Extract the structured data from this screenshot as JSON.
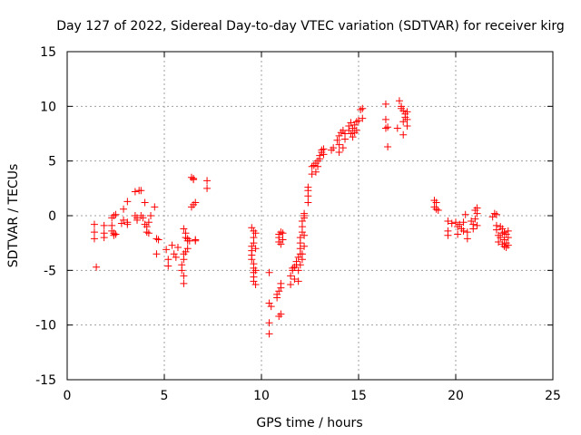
{
  "chart_data": {
    "type": "scatter",
    "title": "Day 127 of 2022, Sidereal Day-to-day VTEC variation (SDTVAR) for receiver kirg",
    "xlabel": "GPS time / hours",
    "ylabel": "SDTVAR / TECUs",
    "xlim": [
      0,
      25
    ],
    "ylim": [
      -15,
      15
    ],
    "xticks": [
      0,
      5,
      10,
      15,
      20,
      25
    ],
    "yticks": [
      -15,
      -10,
      -5,
      0,
      5,
      10,
      15
    ],
    "grid": true,
    "marker": "+",
    "color": "#ff0000",
    "series": [
      {
        "name": "SDTVAR",
        "points": [
          [
            1.4,
            -0.8
          ],
          [
            1.4,
            -1.5
          ],
          [
            1.4,
            -2.1
          ],
          [
            1.5,
            -4.7
          ],
          [
            1.9,
            -0.9
          ],
          [
            1.9,
            -1.6
          ],
          [
            1.9,
            -2.0
          ],
          [
            2.3,
            -0.2
          ],
          [
            2.3,
            -0.9
          ],
          [
            2.3,
            -1.4
          ],
          [
            2.4,
            0.0
          ],
          [
            2.4,
            -1.6
          ],
          [
            2.4,
            -1.8
          ],
          [
            2.5,
            0.1
          ],
          [
            2.5,
            -1.7
          ],
          [
            2.8,
            -0.7
          ],
          [
            2.9,
            -0.4
          ],
          [
            2.9,
            0.6
          ],
          [
            3.1,
            1.3
          ],
          [
            3.1,
            -0.6
          ],
          [
            3.1,
            -0.8
          ],
          [
            3.5,
            0.0
          ],
          [
            3.5,
            2.2
          ],
          [
            3.6,
            -0.2
          ],
          [
            3.6,
            -0.4
          ],
          [
            3.7,
            2.3
          ],
          [
            3.8,
            2.3
          ],
          [
            3.8,
            0.0
          ],
          [
            3.9,
            -0.2
          ],
          [
            4.0,
            1.2
          ],
          [
            4.0,
            -0.8
          ],
          [
            4.1,
            -1.0
          ],
          [
            4.1,
            -1.5
          ],
          [
            4.2,
            -1.6
          ],
          [
            4.2,
            -0.6
          ],
          [
            4.3,
            0.0
          ],
          [
            4.5,
            0.8
          ],
          [
            4.6,
            -2.1
          ],
          [
            4.6,
            -3.5
          ],
          [
            4.7,
            -2.2
          ],
          [
            5.1,
            -3.1
          ],
          [
            5.2,
            -4.0
          ],
          [
            5.2,
            -4.6
          ],
          [
            5.4,
            -2.7
          ],
          [
            5.5,
            -3.5
          ],
          [
            5.6,
            -3.8
          ],
          [
            5.7,
            -2.9
          ],
          [
            5.9,
            -4.5
          ],
          [
            5.9,
            -5.0
          ],
          [
            6.0,
            -5.5
          ],
          [
            6.0,
            -6.2
          ],
          [
            6.0,
            -4.0
          ],
          [
            6.0,
            -3.5
          ],
          [
            6.0,
            -1.2
          ],
          [
            6.1,
            -1.6
          ],
          [
            6.1,
            -2.0
          ],
          [
            6.1,
            -3.3
          ],
          [
            6.2,
            -2.1
          ],
          [
            6.2,
            -2.3
          ],
          [
            6.2,
            -3.0
          ],
          [
            6.3,
            -2.3
          ],
          [
            6.4,
            0.8
          ],
          [
            6.4,
            3.5
          ],
          [
            6.5,
            1.0
          ],
          [
            6.5,
            3.3
          ],
          [
            6.5,
            3.4
          ],
          [
            6.6,
            1.2
          ],
          [
            6.6,
            -2.3
          ],
          [
            6.6,
            -2.2
          ],
          [
            7.2,
            3.2
          ],
          [
            7.2,
            2.5
          ],
          [
            9.5,
            -1.1
          ],
          [
            9.5,
            -2.8
          ],
          [
            9.5,
            -3.2
          ],
          [
            9.5,
            -3.6
          ],
          [
            9.5,
            -4.0
          ],
          [
            9.6,
            -4.4
          ],
          [
            9.6,
            -4.8
          ],
          [
            9.6,
            -5.2
          ],
          [
            9.6,
            -5.6
          ],
          [
            9.6,
            -6.0
          ],
          [
            9.6,
            -1.4
          ],
          [
            9.7,
            -1.6
          ],
          [
            9.7,
            -3.0
          ],
          [
            9.7,
            -5.0
          ],
          [
            9.7,
            -6.3
          ],
          [
            9.6,
            -2.0
          ],
          [
            9.6,
            -2.5
          ],
          [
            10.4,
            -5.2
          ],
          [
            10.4,
            -8.0
          ],
          [
            10.4,
            -9.8
          ],
          [
            10.4,
            -10.8
          ],
          [
            10.5,
            -8.3
          ],
          [
            10.8,
            -7.2
          ],
          [
            10.8,
            -7.5
          ],
          [
            10.9,
            -6.9
          ],
          [
            10.9,
            -9.2
          ],
          [
            11.0,
            -6.6
          ],
          [
            11.0,
            -9.0
          ],
          [
            11.0,
            -6.2
          ],
          [
            10.9,
            -1.7
          ],
          [
            10.9,
            -2.0
          ],
          [
            10.9,
            -2.4
          ],
          [
            11.0,
            -2.6
          ],
          [
            11.0,
            -1.5
          ],
          [
            11.1,
            -1.6
          ],
          [
            11.1,
            -2.2
          ],
          [
            11.5,
            -5.5
          ],
          [
            11.5,
            -6.3
          ],
          [
            11.6,
            -5.0
          ],
          [
            11.6,
            -4.8
          ],
          [
            11.7,
            -4.7
          ],
          [
            11.7,
            -5.8
          ],
          [
            11.8,
            -4.5
          ],
          [
            11.8,
            -4.2
          ],
          [
            11.9,
            -3.8
          ],
          [
            11.9,
            -5.0
          ],
          [
            11.9,
            -6.0
          ],
          [
            12.0,
            -3.5
          ],
          [
            12.0,
            -3.0
          ],
          [
            12.0,
            -2.5
          ],
          [
            12.0,
            -2.0
          ],
          [
            12.0,
            -4.5
          ],
          [
            12.1,
            -1.5
          ],
          [
            12.1,
            -1.0
          ],
          [
            12.1,
            -0.5
          ],
          [
            12.1,
            -3.5
          ],
          [
            12.1,
            -4.0
          ],
          [
            12.2,
            0.0
          ],
          [
            12.2,
            -1.8
          ],
          [
            12.2,
            -2.8
          ],
          [
            12.2,
            -0.2
          ],
          [
            12.2,
            0.2
          ],
          [
            12.4,
            1.2
          ],
          [
            12.4,
            1.8
          ],
          [
            12.4,
            2.3
          ],
          [
            12.4,
            2.6
          ],
          [
            12.6,
            3.8
          ],
          [
            12.6,
            4.5
          ],
          [
            12.7,
            4.6
          ],
          [
            12.8,
            4.0
          ],
          [
            12.8,
            4.8
          ],
          [
            12.9,
            5.0
          ],
          [
            12.9,
            4.5
          ],
          [
            13.0,
            5.5
          ],
          [
            13.0,
            5.2
          ],
          [
            13.1,
            5.8
          ],
          [
            13.1,
            6.0
          ],
          [
            13.2,
            6.1
          ],
          [
            13.2,
            5.6
          ],
          [
            13.6,
            6.0
          ],
          [
            13.7,
            6.2
          ],
          [
            13.9,
            6.9
          ],
          [
            14.0,
            7.3
          ],
          [
            14.0,
            6.5
          ],
          [
            14.0,
            5.8
          ],
          [
            14.1,
            7.6
          ],
          [
            14.2,
            7.8
          ],
          [
            14.2,
            6.2
          ],
          [
            14.3,
            7.5
          ],
          [
            14.3,
            7.0
          ],
          [
            14.5,
            7.8
          ],
          [
            14.5,
            8.2
          ],
          [
            14.6,
            7.5
          ],
          [
            14.6,
            8.5
          ],
          [
            14.7,
            8.0
          ],
          [
            14.7,
            7.2
          ],
          [
            14.8,
            8.3
          ],
          [
            14.8,
            7.6
          ],
          [
            14.9,
            8.6
          ],
          [
            14.9,
            7.8
          ],
          [
            15.0,
            8.7
          ],
          [
            15.1,
            9.7
          ],
          [
            15.2,
            9.8
          ],
          [
            15.2,
            8.9
          ],
          [
            16.4,
            10.2
          ],
          [
            16.4,
            8.8
          ],
          [
            16.4,
            8.0
          ],
          [
            16.5,
            6.3
          ],
          [
            16.5,
            8.1
          ],
          [
            17.0,
            8.0
          ],
          [
            17.1,
            10.5
          ],
          [
            17.2,
            10.0
          ],
          [
            17.2,
            9.8
          ],
          [
            17.3,
            9.6
          ],
          [
            17.3,
            8.6
          ],
          [
            17.3,
            7.4
          ],
          [
            17.4,
            9.0
          ],
          [
            17.4,
            9.3
          ],
          [
            17.5,
            9.5
          ],
          [
            17.5,
            8.8
          ],
          [
            17.5,
            8.2
          ],
          [
            18.9,
            1.4
          ],
          [
            18.9,
            0.8
          ],
          [
            19.0,
            0.6
          ],
          [
            19.0,
            1.2
          ],
          [
            19.1,
            0.5
          ],
          [
            19.6,
            -0.5
          ],
          [
            19.6,
            -1.4
          ],
          [
            19.6,
            -1.8
          ],
          [
            19.8,
            -0.7
          ],
          [
            20.0,
            -0.6
          ],
          [
            20.1,
            -1.0
          ],
          [
            20.1,
            -1.7
          ],
          [
            20.2,
            -0.8
          ],
          [
            20.3,
            -1.2
          ],
          [
            20.4,
            -0.6
          ],
          [
            20.4,
            -1.4
          ],
          [
            20.5,
            0.1
          ],
          [
            20.6,
            -2.1
          ],
          [
            20.6,
            -1.5
          ],
          [
            20.8,
            -0.5
          ],
          [
            20.9,
            -0.8
          ],
          [
            20.9,
            -1.2
          ],
          [
            21.0,
            0.5
          ],
          [
            21.0,
            -0.3
          ],
          [
            21.1,
            0.7
          ],
          [
            21.1,
            0.2
          ],
          [
            21.1,
            -0.9
          ],
          [
            21.9,
            -0.1
          ],
          [
            22.0,
            0.2
          ],
          [
            22.1,
            0.1
          ],
          [
            22.1,
            -0.9
          ],
          [
            22.1,
            -1.3
          ],
          [
            22.2,
            -1.8
          ],
          [
            22.2,
            -2.4
          ],
          [
            22.3,
            -1.0
          ],
          [
            22.3,
            -2.0
          ],
          [
            22.4,
            -1.2
          ],
          [
            22.4,
            -2.6
          ],
          [
            22.4,
            -1.6
          ],
          [
            22.5,
            -1.5
          ],
          [
            22.5,
            -2.2
          ],
          [
            22.5,
            -2.8
          ],
          [
            22.6,
            -1.7
          ],
          [
            22.6,
            -2.5
          ],
          [
            22.6,
            -2.9
          ],
          [
            22.7,
            -2.0
          ],
          [
            22.7,
            -2.7
          ],
          [
            22.7,
            -1.4
          ]
        ]
      }
    ]
  }
}
